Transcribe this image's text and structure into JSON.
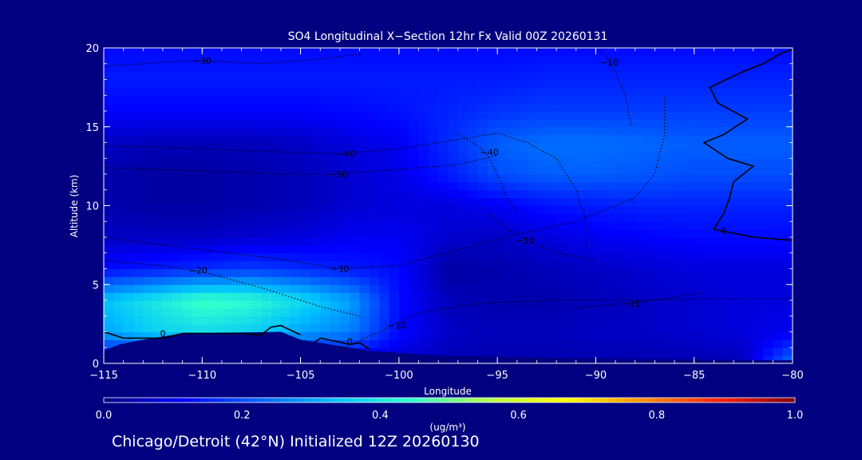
{
  "chart_data": {
    "type": "heatmap",
    "title": "SO4 Longitudinal X−Section 12hr  Fx Valid 00Z 20260131",
    "xlabel": "Longitude",
    "ylabel": "Altitude (km)",
    "xlim": [
      -115,
      -80
    ],
    "ylim": [
      0,
      20
    ],
    "x_ticks": [
      -115,
      -110,
      -105,
      -100,
      -95,
      -90,
      -85,
      -80
    ],
    "x_tick_labels": [
      "−115",
      "−110",
      "−105",
      "−100",
      "−95",
      "−90",
      "−85",
      "−80"
    ],
    "y_ticks": [
      0,
      5,
      10,
      15,
      20
    ],
    "y_tick_labels": [
      "0",
      "5",
      "10",
      "15",
      "20"
    ],
    "colorbar": {
      "min": 0.0,
      "max": 1.0,
      "tick_values": [
        0.0,
        0.2,
        0.4,
        0.6,
        0.8,
        1.0
      ],
      "tick_labels": [
        "0.0",
        "0.2",
        "0.4",
        "0.6",
        "0.8",
        "1.0"
      ],
      "unit_label": "(ug/m³)",
      "colors": [
        "#000080",
        "#0000ff",
        "#0060ff",
        "#00bfff",
        "#30ffcf",
        "#b0ff50",
        "#ffff00",
        "#ff9000",
        "#ff2000",
        "#800000"
      ]
    },
    "grid": false,
    "lon_grid": [
      -115,
      -112.5,
      -110,
      -107.5,
      -105,
      -102.5,
      -100,
      -97.5,
      -95,
      -92.5,
      -90,
      -87.5,
      -85,
      -82.5,
      -80
    ],
    "alt_grid": [
      0,
      2,
      4,
      6,
      8,
      10,
      12,
      14,
      16,
      18,
      20
    ],
    "values": [
      [
        0.06,
        0.06,
        0.05,
        0.05,
        0.05,
        0.06,
        0.06,
        0.05,
        0.04,
        0.04,
        0.04,
        0.04,
        0.04,
        0.05,
        0.25
      ],
      [
        0.3,
        0.36,
        0.38,
        0.36,
        0.3,
        0.26,
        0.12,
        0.06,
        0.05,
        0.05,
        0.06,
        0.06,
        0.07,
        0.08,
        0.1
      ],
      [
        0.34,
        0.4,
        0.46,
        0.44,
        0.38,
        0.3,
        0.12,
        0.05,
        0.04,
        0.04,
        0.05,
        0.06,
        0.07,
        0.08,
        0.08
      ],
      [
        0.12,
        0.14,
        0.16,
        0.18,
        0.16,
        0.14,
        0.12,
        0.03,
        0.04,
        0.05,
        0.06,
        0.07,
        0.08,
        0.08,
        0.08
      ],
      [
        0.06,
        0.06,
        0.06,
        0.07,
        0.08,
        0.1,
        0.1,
        0.07,
        0.06,
        0.08,
        0.1,
        0.11,
        0.12,
        0.12,
        0.12
      ],
      [
        0.04,
        0.03,
        0.03,
        0.04,
        0.05,
        0.07,
        0.08,
        0.08,
        0.1,
        0.13,
        0.14,
        0.15,
        0.15,
        0.15,
        0.15
      ],
      [
        0.04,
        0.03,
        0.03,
        0.04,
        0.05,
        0.07,
        0.09,
        0.14,
        0.2,
        0.22,
        0.22,
        0.21,
        0.2,
        0.2,
        0.2
      ],
      [
        0.06,
        0.05,
        0.05,
        0.05,
        0.06,
        0.08,
        0.1,
        0.16,
        0.22,
        0.24,
        0.24,
        0.23,
        0.22,
        0.22,
        0.22
      ],
      [
        0.11,
        0.11,
        0.11,
        0.11,
        0.11,
        0.12,
        0.13,
        0.15,
        0.17,
        0.18,
        0.18,
        0.18,
        0.18,
        0.18,
        0.18
      ],
      [
        0.14,
        0.14,
        0.14,
        0.14,
        0.14,
        0.14,
        0.14,
        0.14,
        0.14,
        0.15,
        0.15,
        0.15,
        0.15,
        0.15,
        0.15
      ],
      [
        0.12,
        0.12,
        0.12,
        0.12,
        0.12,
        0.12,
        0.12,
        0.12,
        0.12,
        0.12,
        0.12,
        0.12,
        0.12,
        0.12,
        0.12
      ]
    ],
    "terrain": [
      {
        "lon": -115.0,
        "alt": 0.8
      },
      {
        "lon": -114.2,
        "alt": 1.2
      },
      {
        "lon": -113.0,
        "alt": 1.5
      },
      {
        "lon": -111.0,
        "alt": 1.9
      },
      {
        "lon": -106.0,
        "alt": 2.0
      },
      {
        "lon": -105.0,
        "alt": 1.5
      },
      {
        "lon": -101.5,
        "alt": 0.8
      },
      {
        "lon": -98.0,
        "alt": 0.5
      },
      {
        "lon": -90.0,
        "alt": 0.3
      },
      {
        "lon": -82.0,
        "alt": 0.2
      },
      {
        "lon": -80.0,
        "alt": 0.2
      }
    ],
    "contours": [
      {
        "label": "0",
        "style": "solid",
        "label_at": [
          -112,
          1.9
        ],
        "points": [
          [
            -115,
            2.0
          ],
          [
            -114.5,
            1.8
          ],
          [
            -114.0,
            1.6
          ],
          [
            -113,
            1.6
          ],
          [
            -112,
            1.6
          ],
          [
            -111,
            1.9
          ],
          [
            -108,
            1.9
          ],
          [
            -107,
            1.8
          ],
          [
            -106.5,
            2.3
          ],
          [
            -106,
            2.4
          ],
          [
            -105.5,
            2.1
          ],
          [
            -105,
            1.8
          ]
        ]
      },
      {
        "label": "0",
        "style": "solid",
        "label_at": [
          -102.5,
          1.4
        ],
        "points": [
          [
            -104.3,
            1.3
          ],
          [
            -104.0,
            1.6
          ],
          [
            -103.2,
            1.4
          ],
          [
            -102.5,
            1.2
          ],
          [
            -102.0,
            1.3
          ],
          [
            -101.5,
            0.9
          ]
        ]
      },
      {
        "label": "0",
        "style": "solid",
        "label_at": [
          -83.5,
          8.4
        ],
        "points": [
          [
            -80,
            19.9
          ],
          [
            -80.5,
            19.7
          ],
          [
            -81.5,
            19.0
          ],
          [
            -82.5,
            18.5
          ],
          [
            -84.2,
            17.5
          ],
          [
            -83.8,
            16.5
          ],
          [
            -82.3,
            15.5
          ],
          [
            -83.5,
            14.5
          ],
          [
            -84.5,
            14.0
          ],
          [
            -83.3,
            13.0
          ],
          [
            -82.0,
            12.5
          ],
          [
            -83.0,
            11.5
          ],
          [
            -83.2,
            10.5
          ],
          [
            -83.5,
            9.5
          ],
          [
            -84.0,
            8.5
          ],
          [
            -82.0,
            8.0
          ],
          [
            -80,
            7.8
          ]
        ]
      },
      {
        "label": "−10",
        "style": "dotted",
        "label_at": [
          -100.1,
          2.4
        ],
        "points": [
          [
            -103,
            0.9
          ],
          [
            -101,
            2.0
          ],
          [
            -99,
            3.2
          ],
          [
            -96,
            3.8
          ],
          [
            -92,
            4.0
          ],
          [
            -88,
            4.0
          ],
          [
            -84,
            4.1
          ],
          [
            -80,
            4.1
          ]
        ]
      },
      {
        "label": "−20",
        "style": "dotted",
        "label_at": [
          -110.2,
          5.9
        ],
        "points": [
          [
            -115,
            6.5
          ],
          [
            -112,
            6.2
          ],
          [
            -110,
            5.8
          ],
          [
            -107,
            4.8
          ],
          [
            -104,
            3.6
          ],
          [
            -102,
            3.0
          ]
        ]
      },
      {
        "label": "−30",
        "style": "dotted",
        "label_at": [
          -103,
          6.0
        ],
        "points": [
          [
            -115,
            8.0
          ],
          [
            -110,
            7.2
          ],
          [
            -106,
            6.6
          ],
          [
            -103,
            6.0
          ],
          [
            -100,
            6.2
          ],
          [
            -97,
            7.2
          ],
          [
            -94,
            8.2
          ],
          [
            -91,
            9.0
          ],
          [
            -88,
            10.5
          ],
          [
            -87,
            12.0
          ],
          [
            -86.5,
            14.5
          ],
          [
            -86.5,
            17.0
          ]
        ]
      },
      {
        "label": "−30",
        "style": "dotted",
        "label_at": [
          -110,
          19.2
        ],
        "points": [
          [
            -115,
            18.8
          ],
          [
            -112,
            19.1
          ],
          [
            -110,
            19.2
          ],
          [
            -107,
            19.0
          ],
          [
            -104,
            19.3
          ],
          [
            -102,
            19.6
          ]
        ]
      },
      {
        "label": "−40",
        "style": "dotted",
        "label_at": [
          -102.7,
          13.3
        ],
        "points": [
          [
            -115,
            13.8
          ],
          [
            -110,
            13.6
          ],
          [
            -106,
            13.4
          ],
          [
            -103,
            13.3
          ],
          [
            -100,
            13.6
          ],
          [
            -97,
            14.2
          ],
          [
            -95,
            14.6
          ],
          [
            -93.5,
            14.0
          ],
          [
            -92,
            13.0
          ],
          [
            -91,
            11.0
          ],
          [
            -90.5,
            9.0
          ],
          [
            -90.5,
            7.0
          ]
        ]
      },
      {
        "label": "−50",
        "style": "dotted",
        "label_at": [
          -103.1,
          12.0
        ],
        "points": [
          [
            -115,
            12.4
          ],
          [
            -110,
            12.2
          ],
          [
            -106,
            12.0
          ],
          [
            -103,
            12.0
          ],
          [
            -100,
            12.3
          ],
          [
            -97,
            12.6
          ],
          [
            -95,
            13.2
          ]
        ]
      },
      {
        "label": "−40",
        "style": "dotted",
        "label_at": [
          -95.4,
          13.4
        ],
        "points": [
          [
            -97,
            14.5
          ],
          [
            -96,
            13.8
          ],
          [
            -95.5,
            13.2
          ],
          [
            -95,
            12.0
          ],
          [
            -94.5,
            10.5
          ],
          [
            -94,
            9.5
          ]
        ]
      },
      {
        "label": "−30",
        "style": "dotted",
        "label_at": [
          -93.6,
          7.8
        ],
        "points": [
          [
            -95.5,
            9.5
          ],
          [
            -94.5,
            8.5
          ],
          [
            -93.5,
            7.8
          ],
          [
            -92,
            7.0
          ],
          [
            -90,
            6.5
          ]
        ]
      },
      {
        "label": "−10",
        "style": "dotted",
        "label_at": [
          -89.3,
          19.1
        ],
        "points": [
          [
            -90,
            20
          ],
          [
            -89.5,
            19.5
          ],
          [
            -89,
            18.5
          ],
          [
            -88.5,
            17.0
          ],
          [
            -88.2,
            15.0
          ]
        ]
      },
      {
        "label": "−10",
        "style": "dotted",
        "label_at": [
          -88.2,
          3.8
        ],
        "points": [
          [
            -91,
            3.5
          ],
          [
            -89.5,
            3.7
          ],
          [
            -88.2,
            3.8
          ],
          [
            -86,
            4.2
          ],
          [
            -84.5,
            4.5
          ]
        ]
      }
    ]
  },
  "footer_text": "Chicago/Detroit (42°N) Initialized 12Z 20260130"
}
